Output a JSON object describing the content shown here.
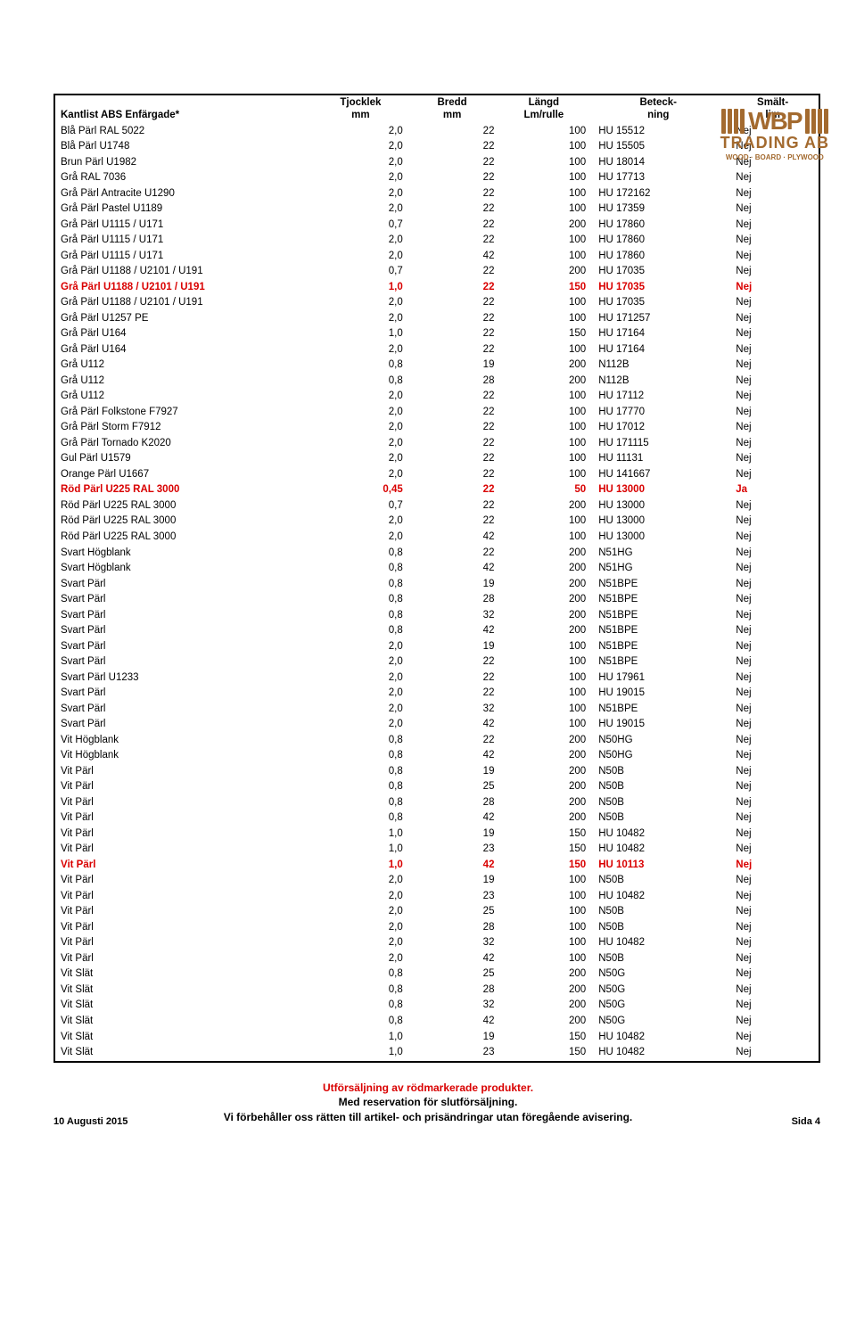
{
  "logo": {
    "letters": "WBP",
    "trading": "TRADING AB",
    "sub": "WOOD · BOARD · PLYWOOD",
    "color": "#a36a2f"
  },
  "table": {
    "columns": [
      {
        "label_line1": "",
        "label_line2": "Kantlist ABS Enfärgade*"
      },
      {
        "label_line1": "Tjocklek",
        "label_line2": "mm"
      },
      {
        "label_line1": "Bredd",
        "label_line2": "mm"
      },
      {
        "label_line1": "Längd",
        "label_line2": "Lm/rulle"
      },
      {
        "label_line1": "Beteck-",
        "label_line2": "ning"
      },
      {
        "label_line1": "Smält-",
        "label_line2": "lim"
      }
    ],
    "rows": [
      {
        "c": [
          "Blå Pärl RAL 5022",
          "2,0",
          "22",
          "100",
          "HU 15512",
          "Nej"
        ],
        "h": false
      },
      {
        "c": [
          "Blå Pärl U1748",
          "2,0",
          "22",
          "100",
          "HU 15505",
          "Nej"
        ],
        "h": false
      },
      {
        "c": [
          "Brun Pärl U1982",
          "2,0",
          "22",
          "100",
          "HU 18014",
          "Nej"
        ],
        "h": false
      },
      {
        "c": [
          "Grå RAL 7036",
          "2,0",
          "22",
          "100",
          "HU 17713",
          "Nej"
        ],
        "h": false
      },
      {
        "c": [
          "Grå Pärl Antracite U1290",
          "2,0",
          "22",
          "100",
          "HU 172162",
          "Nej"
        ],
        "h": false
      },
      {
        "c": [
          "Grå Pärl Pastel U1189",
          "2,0",
          "22",
          "100",
          "HU 17359",
          "Nej"
        ],
        "h": false
      },
      {
        "c": [
          "Grå Pärl U1115 / U171",
          "0,7",
          "22",
          "200",
          "HU 17860",
          "Nej"
        ],
        "h": false
      },
      {
        "c": [
          "Grå Pärl U1115 / U171",
          "2,0",
          "22",
          "100",
          "HU 17860",
          "Nej"
        ],
        "h": false
      },
      {
        "c": [
          "Grå Pärl U1115 / U171",
          "2,0",
          "42",
          "100",
          "HU 17860",
          "Nej"
        ],
        "h": false
      },
      {
        "c": [
          "Grå Pärl U1188 / U2101 / U191",
          "0,7",
          "22",
          "200",
          "HU 17035",
          "Nej"
        ],
        "h": false
      },
      {
        "c": [
          "Grå Pärl U1188 / U2101 / U191",
          "1,0",
          "22",
          "150",
          "HU 17035",
          "Nej"
        ],
        "h": true
      },
      {
        "c": [
          "Grå Pärl U1188 / U2101 / U191",
          "2,0",
          "22",
          "100",
          "HU 17035",
          "Nej"
        ],
        "h": false
      },
      {
        "c": [
          "Grå Pärl U1257 PE",
          "2,0",
          "22",
          "100",
          "HU 171257",
          "Nej"
        ],
        "h": false
      },
      {
        "c": [
          "Grå Pärl U164",
          "1,0",
          "22",
          "150",
          "HU 17164",
          "Nej"
        ],
        "h": false
      },
      {
        "c": [
          "Grå Pärl U164",
          "2,0",
          "22",
          "100",
          "HU 17164",
          "Nej"
        ],
        "h": false
      },
      {
        "c": [
          "Grå U112",
          "0,8",
          "19",
          "200",
          "N112B",
          "Nej"
        ],
        "h": false
      },
      {
        "c": [
          "Grå U112",
          "0,8",
          "28",
          "200",
          "N112B",
          "Nej"
        ],
        "h": false
      },
      {
        "c": [
          "Grå U112",
          "2,0",
          "22",
          "100",
          "HU 17112",
          "Nej"
        ],
        "h": false
      },
      {
        "c": [
          "Grå Pärl Folkstone F7927",
          "2,0",
          "22",
          "100",
          "HU 17770",
          "Nej"
        ],
        "h": false
      },
      {
        "c": [
          "Grå Pärl Storm F7912",
          "2,0",
          "22",
          "100",
          "HU 17012",
          "Nej"
        ],
        "h": false
      },
      {
        "c": [
          "Grå Pärl Tornado K2020",
          "2,0",
          "22",
          "100",
          "HU 171115",
          "Nej"
        ],
        "h": false
      },
      {
        "c": [
          "Gul Pärl U1579",
          "2,0",
          "22",
          "100",
          "HU 11131",
          "Nej"
        ],
        "h": false
      },
      {
        "c": [
          "Orange Pärl U1667",
          "2,0",
          "22",
          "100",
          "HU 141667",
          "Nej"
        ],
        "h": false
      },
      {
        "c": [
          "Röd Pärl U225 RAL 3000",
          "0,45",
          "22",
          "50",
          "HU 13000",
          "Ja"
        ],
        "h": true
      },
      {
        "c": [
          "Röd Pärl U225 RAL 3000",
          "0,7",
          "22",
          "200",
          "HU 13000",
          "Nej"
        ],
        "h": false
      },
      {
        "c": [
          "Röd Pärl U225 RAL 3000",
          "2,0",
          "22",
          "100",
          "HU 13000",
          "Nej"
        ],
        "h": false
      },
      {
        "c": [
          "Röd Pärl U225 RAL 3000",
          "2,0",
          "42",
          "100",
          "HU 13000",
          "Nej"
        ],
        "h": false
      },
      {
        "c": [
          "Svart Högblank",
          "0,8",
          "22",
          "200",
          "N51HG",
          "Nej"
        ],
        "h": false
      },
      {
        "c": [
          "Svart Högblank",
          "0,8",
          "42",
          "200",
          "N51HG",
          "Nej"
        ],
        "h": false
      },
      {
        "c": [
          "Svart Pärl",
          "0,8",
          "19",
          "200",
          "N51BPE",
          "Nej"
        ],
        "h": false
      },
      {
        "c": [
          "Svart Pärl",
          "0,8",
          "28",
          "200",
          "N51BPE",
          "Nej"
        ],
        "h": false
      },
      {
        "c": [
          "Svart Pärl",
          "0,8",
          "32",
          "200",
          "N51BPE",
          "Nej"
        ],
        "h": false
      },
      {
        "c": [
          "Svart Pärl",
          "0,8",
          "42",
          "200",
          "N51BPE",
          "Nej"
        ],
        "h": false
      },
      {
        "c": [
          "Svart Pärl",
          "2,0",
          "19",
          "100",
          "N51BPE",
          "Nej"
        ],
        "h": false
      },
      {
        "c": [
          "Svart Pärl",
          "2,0",
          "22",
          "100",
          "N51BPE",
          "Nej"
        ],
        "h": false
      },
      {
        "c": [
          "Svart Pärl U1233",
          "2,0",
          "22",
          "100",
          "HU 17961",
          "Nej"
        ],
        "h": false
      },
      {
        "c": [
          "Svart Pärl",
          "2,0",
          "22",
          "100",
          "HU 19015",
          "Nej"
        ],
        "h": false
      },
      {
        "c": [
          "Svart Pärl",
          "2,0",
          "32",
          "100",
          "N51BPE",
          "Nej"
        ],
        "h": false
      },
      {
        "c": [
          "Svart Pärl",
          "2,0",
          "42",
          "100",
          "HU 19015",
          "Nej"
        ],
        "h": false
      },
      {
        "c": [
          "Vit Högblank",
          "0,8",
          "22",
          "200",
          "N50HG",
          "Nej"
        ],
        "h": false
      },
      {
        "c": [
          "Vit Högblank",
          "0,8",
          "42",
          "200",
          "N50HG",
          "Nej"
        ],
        "h": false
      },
      {
        "c": [
          "Vit Pärl",
          "0,8",
          "19",
          "200",
          "N50B",
          "Nej"
        ],
        "h": false
      },
      {
        "c": [
          "Vit Pärl",
          "0,8",
          "25",
          "200",
          "N50B",
          "Nej"
        ],
        "h": false
      },
      {
        "c": [
          "Vit Pärl",
          "0,8",
          "28",
          "200",
          "N50B",
          "Nej"
        ],
        "h": false
      },
      {
        "c": [
          "Vit Pärl",
          "0,8",
          "42",
          "200",
          "N50B",
          "Nej"
        ],
        "h": false
      },
      {
        "c": [
          "Vit Pärl",
          "1,0",
          "19",
          "150",
          "HU 10482",
          "Nej"
        ],
        "h": false
      },
      {
        "c": [
          "Vit Pärl",
          "1,0",
          "23",
          "150",
          "HU 10482",
          "Nej"
        ],
        "h": false
      },
      {
        "c": [
          "Vit Pärl",
          "1,0",
          "42",
          "150",
          "HU 10113",
          "Nej"
        ],
        "h": true
      },
      {
        "c": [
          "Vit Pärl",
          "2,0",
          "19",
          "100",
          "N50B",
          "Nej"
        ],
        "h": false
      },
      {
        "c": [
          "Vit Pärl",
          "2,0",
          "23",
          "100",
          "HU 10482",
          "Nej"
        ],
        "h": false
      },
      {
        "c": [
          "Vit Pärl",
          "2,0",
          "25",
          "100",
          "N50B",
          "Nej"
        ],
        "h": false
      },
      {
        "c": [
          "Vit Pärl",
          "2,0",
          "28",
          "100",
          "N50B",
          "Nej"
        ],
        "h": false
      },
      {
        "c": [
          "Vit Pärl",
          "2,0",
          "32",
          "100",
          "HU 10482",
          "Nej"
        ],
        "h": false
      },
      {
        "c": [
          "Vit Pärl",
          "2,0",
          "42",
          "100",
          "N50B",
          "Nej"
        ],
        "h": false
      },
      {
        "c": [
          "Vit Slät",
          "0,8",
          "25",
          "200",
          "N50G",
          "Nej"
        ],
        "h": false
      },
      {
        "c": [
          "Vit Slät",
          "0,8",
          "28",
          "200",
          "N50G",
          "Nej"
        ],
        "h": false
      },
      {
        "c": [
          "Vit Slät",
          "0,8",
          "32",
          "200",
          "N50G",
          "Nej"
        ],
        "h": false
      },
      {
        "c": [
          "Vit Slät",
          "0,8",
          "42",
          "200",
          "N50G",
          "Nej"
        ],
        "h": false
      },
      {
        "c": [
          "Vit Slät",
          "1,0",
          "19",
          "150",
          "HU 10482",
          "Nej"
        ],
        "h": false
      },
      {
        "c": [
          "Vit Slät",
          "1,0",
          "23",
          "150",
          "HU 10482",
          "Nej"
        ],
        "h": false
      }
    ]
  },
  "footer": {
    "line1": "Utförsäljning av rödmarkerade produkter.",
    "line2": "Med reservation för slutförsäljning.",
    "line3": "Vi förbehåller oss rätten till artikel- och prisändringar utan föregående avisering.",
    "date": "10 Augusti 2015",
    "page": "Sida 4"
  }
}
